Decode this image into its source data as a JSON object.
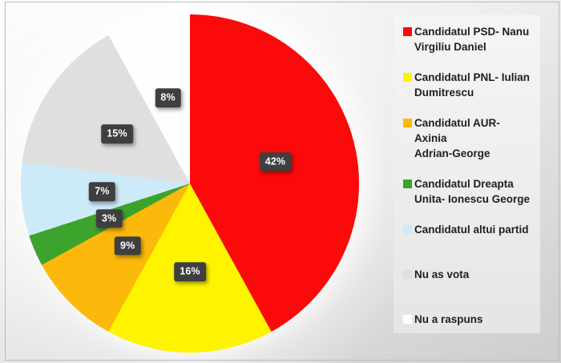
{
  "chart_data": {
    "type": "pie",
    "title": "",
    "categories": [
      "Candidatul PSD- Nanu Virgiliu Daniel",
      "Candidatul PNL- Iulian Dumitrescu",
      "Candidatul AUR- Axinia Adrian-George",
      "Candidatul Dreapta Unita- Ionescu George",
      "Candidatul altui partid",
      "Nu as vota",
      "Nu a raspuns"
    ],
    "values": [
      42,
      16,
      9,
      3,
      7,
      15,
      8
    ],
    "unit": "%",
    "data_labels": [
      "42%",
      "16%",
      "9%",
      "3%",
      "7%",
      "15%",
      "8%"
    ],
    "colors": [
      "#FA0A0A",
      "#FEF400",
      "#FCB80B",
      "#3CA42C",
      "#CDEAF9",
      "#DFDFDE",
      "#FEFEFE"
    ],
    "start_angle_deg": 0,
    "direction": "clockwise",
    "legend_position": "right",
    "legend_lines": [
      [
        "Candidatul PSD- Nanu",
        "Virgiliu Daniel"
      ],
      [
        "Candidatul PNL- Iulian",
        "Dumitrescu"
      ],
      [
        "Candidatul AUR- Axinia",
        "Adrian-George"
      ],
      [
        "Candidatul Dreapta",
        "Unita- Ionescu George"
      ],
      [
        "Candidatul altui partid"
      ],
      [
        "Nu as vota"
      ],
      [
        "Nu a raspuns"
      ]
    ],
    "label_box": {
      "background": "#3F3F3F",
      "text_color": "#FFFFFF"
    }
  }
}
